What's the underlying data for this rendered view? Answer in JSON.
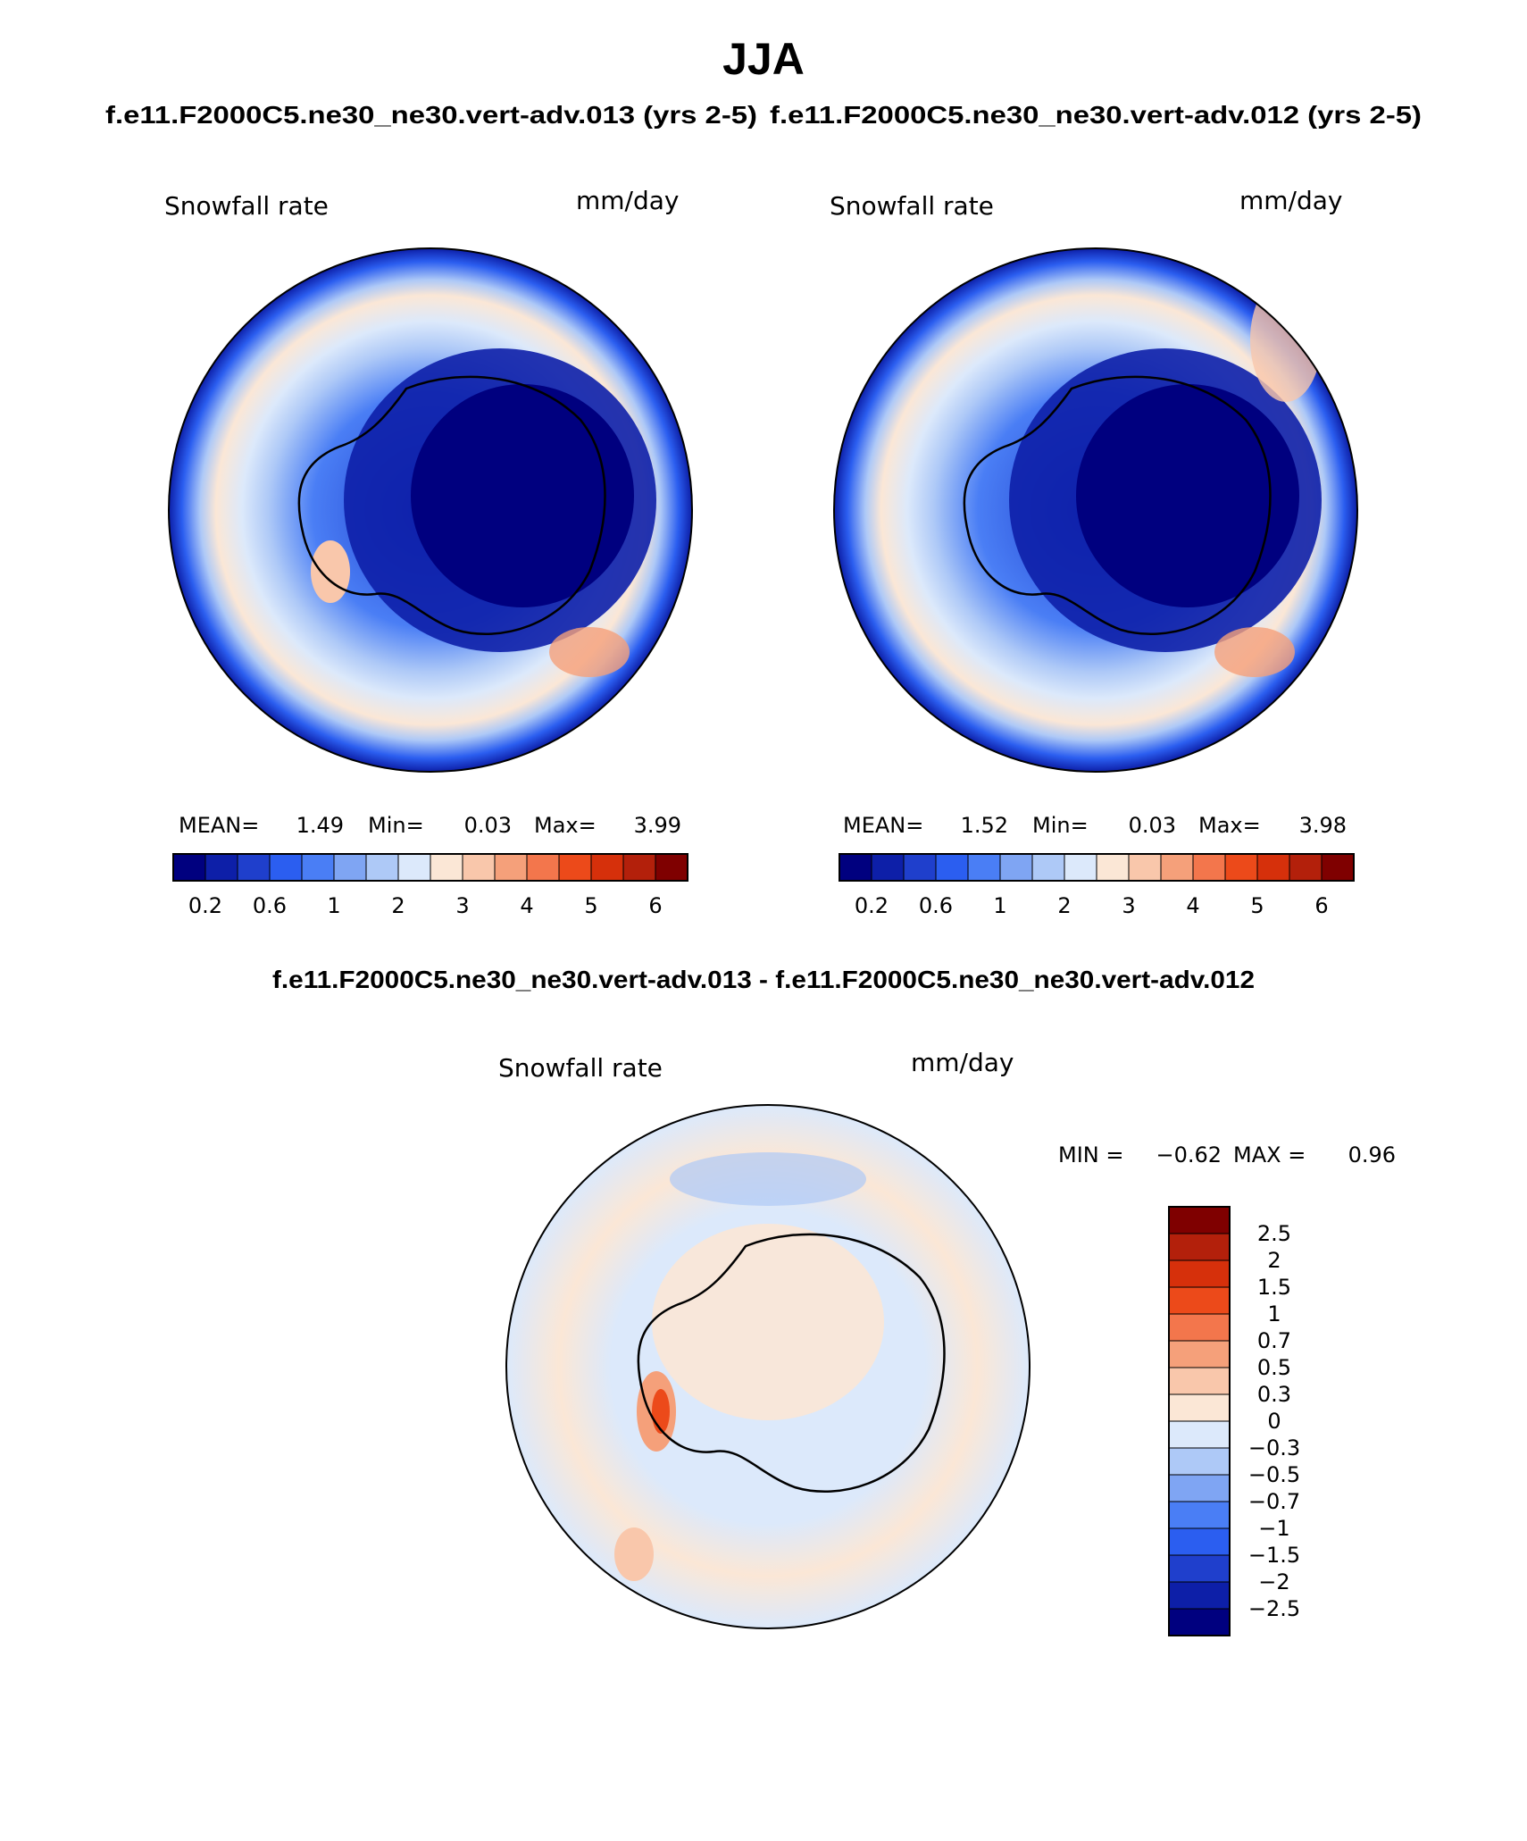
{
  "figure": {
    "title": "JJA",
    "top_left_subtitle": "f.e11.F2000C5.ne30_ne30.vert-adv.013 (yrs 2-5)",
    "top_right_subtitle": "f.e11.F2000C5.ne30_ne30.vert-adv.012 (yrs 2-5)",
    "diff_subtitle": "f.e11.F2000C5.ne30_ne30.vert-adv.013 - f.e11.F2000C5.ne30_ne30.vert-adv.012"
  },
  "panels": {
    "left": {
      "variable": "Snowfall rate",
      "units": "mm/day",
      "stats": {
        "mean_label": "MEAN=",
        "mean_value": "1.49",
        "min_label": "Min=",
        "min_value": "0.03",
        "max_label": "Max=",
        "max_value": "3.99"
      }
    },
    "right": {
      "variable": "Snowfall rate",
      "units": "mm/day",
      "stats": {
        "mean_label": "MEAN=",
        "mean_value": "1.52",
        "min_label": "Min=",
        "min_value": "0.03",
        "max_label": "Max=",
        "max_value": "3.98"
      }
    },
    "diff": {
      "variable": "Snowfall rate",
      "units": "mm/day",
      "stats": {
        "min_label": "MIN =",
        "min_value": "−0.62",
        "max_label": "MAX =",
        "max_value": "0.96"
      }
    }
  },
  "colorbars": {
    "absolute": {
      "colors": [
        "#00007f",
        "#0d1fa8",
        "#1f3fcc",
        "#2b5ef0",
        "#4a7ef5",
        "#7fa5f3",
        "#aec9f7",
        "#dce9fb",
        "#fbe7d6",
        "#f9c7ab",
        "#f5a07a",
        "#f3764c",
        "#ec4a1a",
        "#d6300b",
        "#b3200b",
        "#7f0000"
      ],
      "tick_labels": [
        "0.2",
        "0.6",
        "1",
        "2",
        "3",
        "4",
        "5",
        "6"
      ]
    },
    "difference": {
      "colors": [
        "#00007f",
        "#0d1fa8",
        "#1f3fcc",
        "#2b5ef0",
        "#4a7ef5",
        "#7fa5f3",
        "#aec9f7",
        "#dce9fb",
        "#fbe7d6",
        "#f9c7ab",
        "#f5a07a",
        "#f3764c",
        "#ec4a1a",
        "#d6300b",
        "#b3200b",
        "#7f0000"
      ],
      "tick_labels": [
        "−2.5",
        "−2",
        "−1.5",
        "−1",
        "−0.7",
        "−0.5",
        "−0.3",
        "0",
        "0.3",
        "0.5",
        "0.7",
        "1",
        "1.5",
        "2",
        "2.5"
      ]
    }
  },
  "chart_data": [
    {
      "type": "heatmap",
      "title": "f.e11.F2000C5.ne30_ne30.vert-adv.013 (yrs 2-5)",
      "variable": "Snowfall rate",
      "units": "mm/day",
      "projection": "south polar stereographic",
      "mean": 1.49,
      "min": 0.03,
      "max": 3.99,
      "contour_levels": [
        0.2,
        0.4,
        0.6,
        0.8,
        1,
        1.5,
        2,
        2.5,
        3,
        3.5,
        4,
        4.5,
        5,
        5.5,
        6
      ]
    },
    {
      "type": "heatmap",
      "title": "f.e11.F2000C5.ne30_ne30.vert-adv.012 (yrs 2-5)",
      "variable": "Snowfall rate",
      "units": "mm/day",
      "projection": "south polar stereographic",
      "mean": 1.52,
      "min": 0.03,
      "max": 3.98,
      "contour_levels": [
        0.2,
        0.4,
        0.6,
        0.8,
        1,
        1.5,
        2,
        2.5,
        3,
        3.5,
        4,
        4.5,
        5,
        5.5,
        6
      ]
    },
    {
      "type": "heatmap",
      "title": "f.e11.F2000C5.ne30_ne30.vert-adv.013 - f.e11.F2000C5.ne30_ne30.vert-adv.012",
      "variable": "Snowfall rate",
      "units": "mm/day",
      "projection": "south polar stereographic",
      "min": -0.62,
      "max": 0.96,
      "contour_levels": [
        -2.5,
        -2,
        -1.5,
        -1,
        -0.7,
        -0.5,
        -0.3,
        0,
        0.3,
        0.5,
        0.7,
        1,
        1.5,
        2,
        2.5
      ]
    }
  ]
}
